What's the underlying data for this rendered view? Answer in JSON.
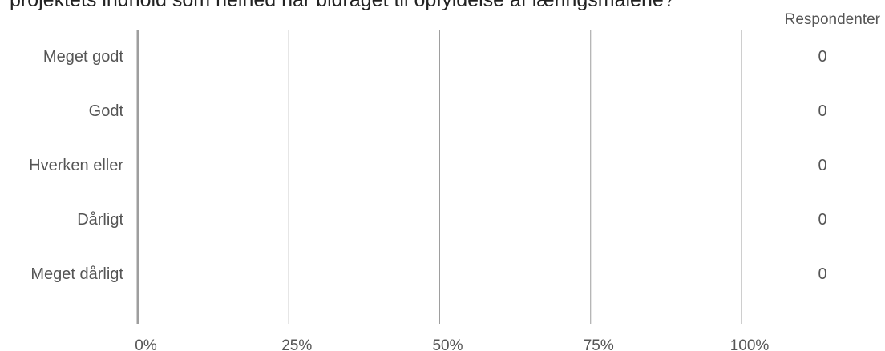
{
  "chart_data": {
    "type": "bar",
    "orientation": "horizontal",
    "title": "projektets indhold som helhed har bidraget til opfyldelse af læringsmålene?",
    "categories": [
      "Meget godt",
      "Godt",
      "Hverken eller",
      "Dårligt",
      "Meget dårligt"
    ],
    "values": [
      0,
      0,
      0,
      0,
      0
    ],
    "respondents_header": "Respondenter",
    "respondents": [
      "0",
      "0",
      "0",
      "0",
      "0"
    ],
    "x_ticks": [
      "0%",
      "25%",
      "50%",
      "75%",
      "100%"
    ],
    "xlim": [
      0,
      100
    ],
    "grid": true,
    "colors": {
      "grid": "#9e9e9e",
      "axis": "#9e9e9e",
      "bar": "#4a7ebb"
    }
  }
}
